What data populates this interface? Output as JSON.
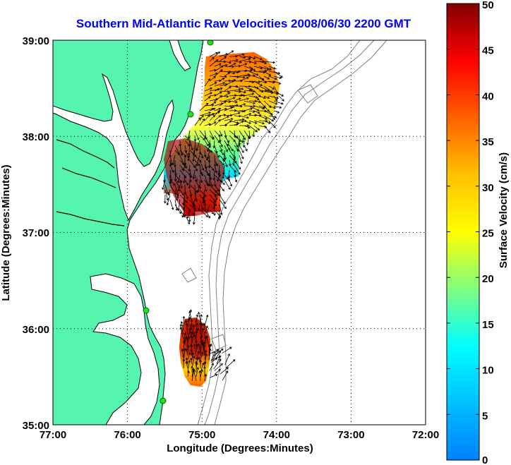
{
  "title": "Southern Mid-Atlantic Raw Velocities 2008/06/30 2200 GMT",
  "map": {
    "xlabel": "Longitude (Degrees:Minutes)",
    "ylabel": "Latitude (Degrees:Minutes)",
    "x_ticks": [
      "77:00",
      "76:00",
      "75:00",
      "74:00",
      "73:00",
      "72:00"
    ],
    "y_ticks": [
      "39:00",
      "38:00",
      "37:00",
      "36:00",
      "35:00"
    ],
    "lon_range": [
      -77,
      -72
    ],
    "lat_range": [
      35,
      39
    ],
    "land_color": "#55f5b0",
    "grid": "dotted"
  },
  "colorbar": {
    "label": "Surface Velocity (cm/s)",
    "ticks": [
      "50",
      "45",
      "40",
      "35",
      "30",
      "25",
      "20",
      "15",
      "10",
      "5",
      "0"
    ],
    "range": [
      0,
      50
    ],
    "colormap": "jet"
  }
}
